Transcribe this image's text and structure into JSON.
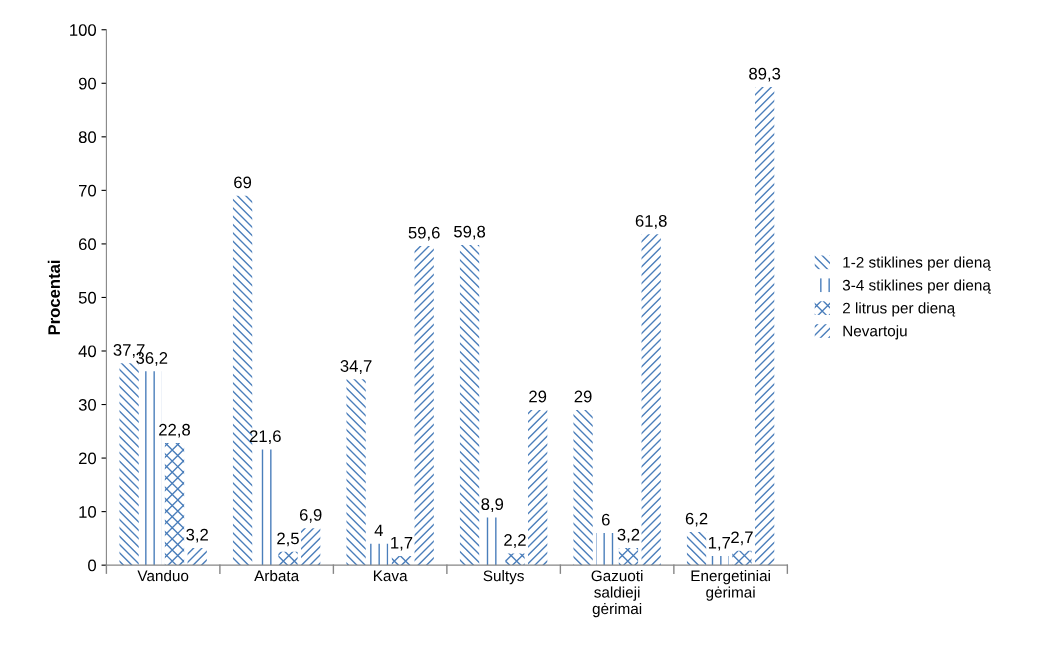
{
  "chart_data": {
    "type": "bar",
    "ylabel": "Procentai",
    "categories": [
      "Vanduo",
      "Arbata",
      "Kava",
      "Sultys",
      "Gazuoti\nsaldieji\ngėrimai",
      "Energetiniai\ngėrimai"
    ],
    "series": [
      {
        "name": "1-2 stiklines per dieną",
        "color": "#4a7ebb",
        "values": [
          37.7,
          69,
          34.7,
          59.8,
          29,
          6.2
        ],
        "value_labels": [
          "37,7",
          "69",
          "34,7",
          "59,8",
          "29",
          "6,2"
        ]
      },
      {
        "name": "3-4 stiklines per dieną",
        "color": "#4a7ebb",
        "values": [
          36.2,
          21.6,
          4,
          8.9,
          6,
          1.7
        ],
        "value_labels": [
          "36,2",
          "21,6",
          "4",
          "8,9",
          "6",
          "1,7"
        ]
      },
      {
        "name": "2 litrus per dieną",
        "color": "#4a7ebb",
        "values": [
          22.8,
          2.5,
          1.7,
          2.2,
          3.2,
          2.7
        ],
        "value_labels": [
          "22,8",
          "2,5",
          "1,7",
          "2,2",
          "3,2",
          "2,7"
        ]
      },
      {
        "name": "Nevartoju",
        "color": "#4a7ebb",
        "values": [
          3.2,
          6.9,
          59.6,
          29,
          61.8,
          89.3
        ],
        "value_labels": [
          "3,2",
          "6,9",
          "59,6",
          "29",
          "61,8",
          "89,3"
        ]
      }
    ],
    "ylim": [
      0,
      100
    ],
    "yticks": [
      0,
      10,
      20,
      30,
      40,
      50,
      60,
      70,
      80,
      90,
      100
    ],
    "grid": false,
    "legend": "right"
  }
}
